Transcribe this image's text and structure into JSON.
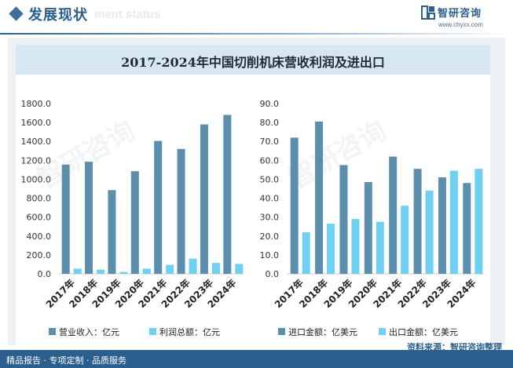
{
  "header": {
    "section_title": "发展现状",
    "section_subtitle": "ment status",
    "logo_name": "智研咨询",
    "logo_url": "www.chyxx.com"
  },
  "chart_title": "2017-2024年中国切削机床营收利润及进出口",
  "footer": {
    "tagline": "精品报告 · 专项定制 · 品质服务",
    "source": "资料来源：智研咨询整理"
  },
  "colors": {
    "primary": "#5b8fad",
    "secondary": "#6fd0f2",
    "brand": "#2b5f8e"
  },
  "chart_data": [
    {
      "type": "bar",
      "categories": [
        "2017年",
        "2018年",
        "2019年",
        "2020年",
        "2021年",
        "2022年",
        "2023年",
        "2024年"
      ],
      "ylim": [
        0,
        1800
      ],
      "yticks": [
        "0.0",
        "200.0",
        "400.0",
        "600.0",
        "800.0",
        "1000.0",
        "1200.0",
        "1400.0",
        "1600.0",
        "1800.0"
      ],
      "series": [
        {
          "name": "营业收入：亿元",
          "color": "#5b8fad",
          "values": [
            1155,
            1185,
            885,
            1085,
            1405,
            1320,
            1580,
            1680
          ]
        },
        {
          "name": "利润总额：亿元",
          "color": "#6fd0f2",
          "values": [
            55,
            45,
            20,
            55,
            95,
            160,
            115,
            105
          ]
        }
      ]
    },
    {
      "type": "bar",
      "categories": [
        "2017年",
        "2018年",
        "2019年",
        "2020年",
        "2021年",
        "2022年",
        "2023年",
        "2024年"
      ],
      "ylim": [
        0,
        90
      ],
      "yticks": [
        "0.0",
        "10.0",
        "20.0",
        "30.0",
        "40.0",
        "50.0",
        "60.0",
        "70.0",
        "80.0",
        "90.0"
      ],
      "series": [
        {
          "name": "进口金额：亿美元",
          "color": "#5b8fad",
          "values": [
            72,
            80.5,
            57.5,
            48.5,
            62,
            55.5,
            51,
            48
          ]
        },
        {
          "name": "出口金额：亿美元",
          "color": "#6fd0f2",
          "values": [
            22,
            26.5,
            29,
            27.5,
            36,
            44,
            54.5,
            55.5
          ]
        }
      ]
    }
  ]
}
